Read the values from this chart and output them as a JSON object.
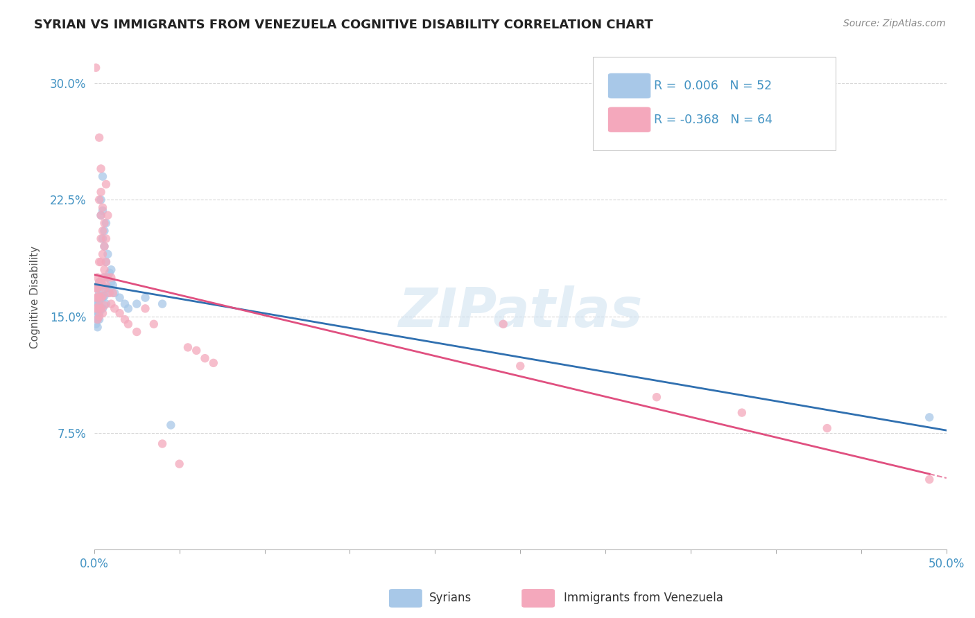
{
  "title": "SYRIAN VS IMMIGRANTS FROM VENEZUELA COGNITIVE DISABILITY CORRELATION CHART",
  "source": "Source: ZipAtlas.com",
  "ylabel": "Cognitive Disability",
  "watermark": "ZIPatlas",
  "xlim": [
    0.0,
    0.5
  ],
  "ylim": [
    0.0,
    0.325
  ],
  "yticks": [
    0.075,
    0.15,
    0.225,
    0.3
  ],
  "ytick_labels": [
    "7.5%",
    "15.0%",
    "22.5%",
    "30.0%"
  ],
  "xtick_vals": [
    0.0,
    0.05,
    0.1,
    0.15,
    0.2,
    0.25,
    0.3,
    0.35,
    0.4,
    0.45,
    0.5
  ],
  "xtick_labels": [
    "0.0%",
    "",
    "",
    "",
    "",
    "",
    "",
    "",
    "",
    "",
    "50.0%"
  ],
  "legend_R_blue": "0.006",
  "legend_N_blue": "52",
  "legend_R_pink": "-0.368",
  "legend_N_pink": "64",
  "blue_color": "#a8c8e8",
  "pink_color": "#f4a8bc",
  "line_blue_color": "#3070b0",
  "line_pink_color": "#e05080",
  "background_color": "#ffffff",
  "grid_color": "#d8d8d8",
  "title_color": "#222222",
  "legend_text_color": "#4393c3",
  "syrians_scatter": [
    [
      0.001,
      0.16
    ],
    [
      0.001,
      0.155
    ],
    [
      0.001,
      0.15
    ],
    [
      0.001,
      0.145
    ],
    [
      0.002,
      0.168
    ],
    [
      0.002,
      0.162
    ],
    [
      0.002,
      0.158
    ],
    [
      0.002,
      0.153
    ],
    [
      0.002,
      0.148
    ],
    [
      0.002,
      0.143
    ],
    [
      0.003,
      0.172
    ],
    [
      0.003,
      0.165
    ],
    [
      0.003,
      0.16
    ],
    [
      0.003,
      0.157
    ],
    [
      0.003,
      0.152
    ],
    [
      0.003,
      0.148
    ],
    [
      0.004,
      0.225
    ],
    [
      0.004,
      0.215
    ],
    [
      0.004,
      0.17
    ],
    [
      0.004,
      0.163
    ],
    [
      0.004,
      0.155
    ],
    [
      0.005,
      0.24
    ],
    [
      0.005,
      0.218
    ],
    [
      0.005,
      0.2
    ],
    [
      0.005,
      0.17
    ],
    [
      0.005,
      0.162
    ],
    [
      0.005,
      0.155
    ],
    [
      0.006,
      0.205
    ],
    [
      0.006,
      0.195
    ],
    [
      0.006,
      0.175
    ],
    [
      0.006,
      0.163
    ],
    [
      0.007,
      0.21
    ],
    [
      0.007,
      0.185
    ],
    [
      0.007,
      0.168
    ],
    [
      0.007,
      0.158
    ],
    [
      0.008,
      0.19
    ],
    [
      0.008,
      0.175
    ],
    [
      0.008,
      0.165
    ],
    [
      0.009,
      0.178
    ],
    [
      0.009,
      0.168
    ],
    [
      0.01,
      0.18
    ],
    [
      0.01,
      0.172
    ],
    [
      0.011,
      0.17
    ],
    [
      0.012,
      0.165
    ],
    [
      0.015,
      0.162
    ],
    [
      0.018,
      0.158
    ],
    [
      0.02,
      0.155
    ],
    [
      0.025,
      0.158
    ],
    [
      0.03,
      0.162
    ],
    [
      0.04,
      0.158
    ],
    [
      0.045,
      0.08
    ],
    [
      0.49,
      0.085
    ]
  ],
  "venezuela_scatter": [
    [
      0.001,
      0.31
    ],
    [
      0.001,
      0.168
    ],
    [
      0.001,
      0.162
    ],
    [
      0.001,
      0.155
    ],
    [
      0.002,
      0.175
    ],
    [
      0.002,
      0.168
    ],
    [
      0.002,
      0.162
    ],
    [
      0.002,
      0.155
    ],
    [
      0.002,
      0.148
    ],
    [
      0.003,
      0.265
    ],
    [
      0.003,
      0.225
    ],
    [
      0.003,
      0.185
    ],
    [
      0.003,
      0.172
    ],
    [
      0.003,
      0.163
    ],
    [
      0.003,
      0.157
    ],
    [
      0.003,
      0.15
    ],
    [
      0.004,
      0.245
    ],
    [
      0.004,
      0.23
    ],
    [
      0.004,
      0.215
    ],
    [
      0.004,
      0.2
    ],
    [
      0.004,
      0.185
    ],
    [
      0.004,
      0.172
    ],
    [
      0.004,
      0.162
    ],
    [
      0.004,
      0.155
    ],
    [
      0.005,
      0.22
    ],
    [
      0.005,
      0.205
    ],
    [
      0.005,
      0.19
    ],
    [
      0.005,
      0.175
    ],
    [
      0.005,
      0.163
    ],
    [
      0.005,
      0.152
    ],
    [
      0.006,
      0.21
    ],
    [
      0.006,
      0.195
    ],
    [
      0.006,
      0.18
    ],
    [
      0.006,
      0.168
    ],
    [
      0.006,
      0.157
    ],
    [
      0.007,
      0.235
    ],
    [
      0.007,
      0.2
    ],
    [
      0.007,
      0.185
    ],
    [
      0.007,
      0.17
    ],
    [
      0.008,
      0.215
    ],
    [
      0.008,
      0.175
    ],
    [
      0.009,
      0.165
    ],
    [
      0.01,
      0.175
    ],
    [
      0.01,
      0.158
    ],
    [
      0.011,
      0.165
    ],
    [
      0.012,
      0.155
    ],
    [
      0.015,
      0.152
    ],
    [
      0.018,
      0.148
    ],
    [
      0.02,
      0.145
    ],
    [
      0.025,
      0.14
    ],
    [
      0.03,
      0.155
    ],
    [
      0.035,
      0.145
    ],
    [
      0.04,
      0.068
    ],
    [
      0.05,
      0.055
    ],
    [
      0.055,
      0.13
    ],
    [
      0.06,
      0.128
    ],
    [
      0.065,
      0.123
    ],
    [
      0.07,
      0.12
    ],
    [
      0.24,
      0.145
    ],
    [
      0.25,
      0.118
    ],
    [
      0.33,
      0.098
    ],
    [
      0.38,
      0.088
    ],
    [
      0.43,
      0.078
    ],
    [
      0.49,
      0.045
    ]
  ]
}
